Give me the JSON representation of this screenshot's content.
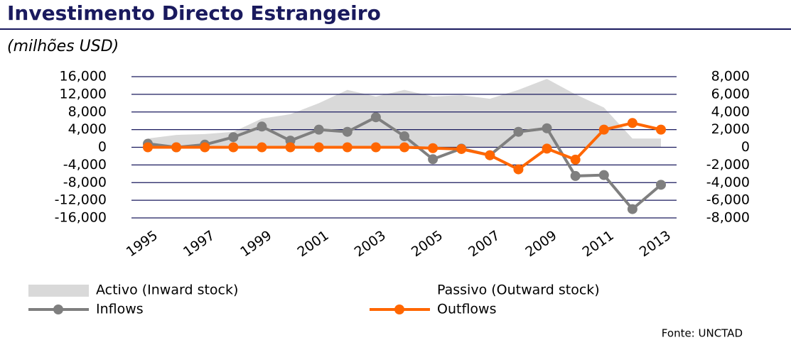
{
  "chart_data": {
    "type": "line",
    "title": "Investimento Directo Estrangeiro",
    "subtitle": "(milhões USD)",
    "source": "Fonte: UNCTAD",
    "x": [
      1995,
      1996,
      1997,
      1998,
      1999,
      2000,
      2001,
      2002,
      2003,
      2004,
      2005,
      2006,
      2007,
      2008,
      2009,
      2010,
      2011,
      2012,
      2013
    ],
    "xlim": [
      1995,
      2013
    ],
    "xticks": [
      1995,
      1997,
      1999,
      2001,
      2003,
      2005,
      2007,
      2009,
      2011,
      2013
    ],
    "ylim": [
      -16000,
      16000
    ],
    "yticks": [
      {
        "value": -16000,
        "label": "-16,000"
      },
      {
        "value": -12000,
        "label": "-12,000"
      },
      {
        "value": -8000,
        "label": "-8,000"
      },
      {
        "value": -4000,
        "label": "-4,000"
      },
      0,
      {
        "value": 4000,
        "label": "4,000"
      },
      {
        "value": 8000,
        "label": "8,000"
      },
      {
        "value": 12000,
        "label": "12,000"
      },
      {
        "value": 16000,
        "label": "16,000"
      }
    ],
    "y2lim": [
      -8000,
      8000
    ],
    "y2ticks": [
      {
        "value": -8000,
        "label": "-8,000"
      },
      {
        "value": -6000,
        "label": "-6,000"
      },
      {
        "value": -4000,
        "label": "-4,000"
      },
      {
        "value": -2000,
        "label": "-2,000"
      },
      0,
      {
        "value": 2000,
        "label": "2,000"
      },
      {
        "value": 4000,
        "label": "4,000"
      },
      {
        "value": 6000,
        "label": "6,000"
      },
      {
        "value": 8000,
        "label": "8,000"
      }
    ],
    "grid": true,
    "series": [
      {
        "name": "Activo (Inward stock)",
        "kind": "area",
        "color": "#d9d9d9",
        "values": [
          2000,
          2800,
          3000,
          3500,
          6500,
          7500,
          10000,
          13000,
          11500,
          13000,
          11500,
          11800,
          11000,
          13000,
          15500,
          12000,
          9000,
          2000,
          2000
        ]
      },
      {
        "name": "Passivo (Outward stock)",
        "kind": "area",
        "color": "#ffffff",
        "values": [
          null,
          null,
          null,
          null,
          null,
          null,
          null,
          null,
          null,
          null,
          null,
          null,
          null,
          null,
          null,
          null,
          null,
          null,
          null
        ]
      },
      {
        "name": "Inflows",
        "kind": "line",
        "color": "#7f7f7f",
        "values": [
          800,
          0,
          600,
          2300,
          4700,
          1500,
          4000,
          3500,
          6800,
          2500,
          -2700,
          -300,
          -1800,
          3500,
          4300,
          -6500,
          -6300,
          -14000,
          -8500
        ]
      },
      {
        "name": "Outflows",
        "kind": "line",
        "color": "#ff6600",
        "values": [
          0,
          0,
          0,
          0,
          0,
          0,
          0,
          0,
          0,
          0,
          -200,
          -400,
          -1800,
          -5000,
          -300,
          -2800,
          4000,
          5500,
          4000
        ]
      }
    ]
  }
}
